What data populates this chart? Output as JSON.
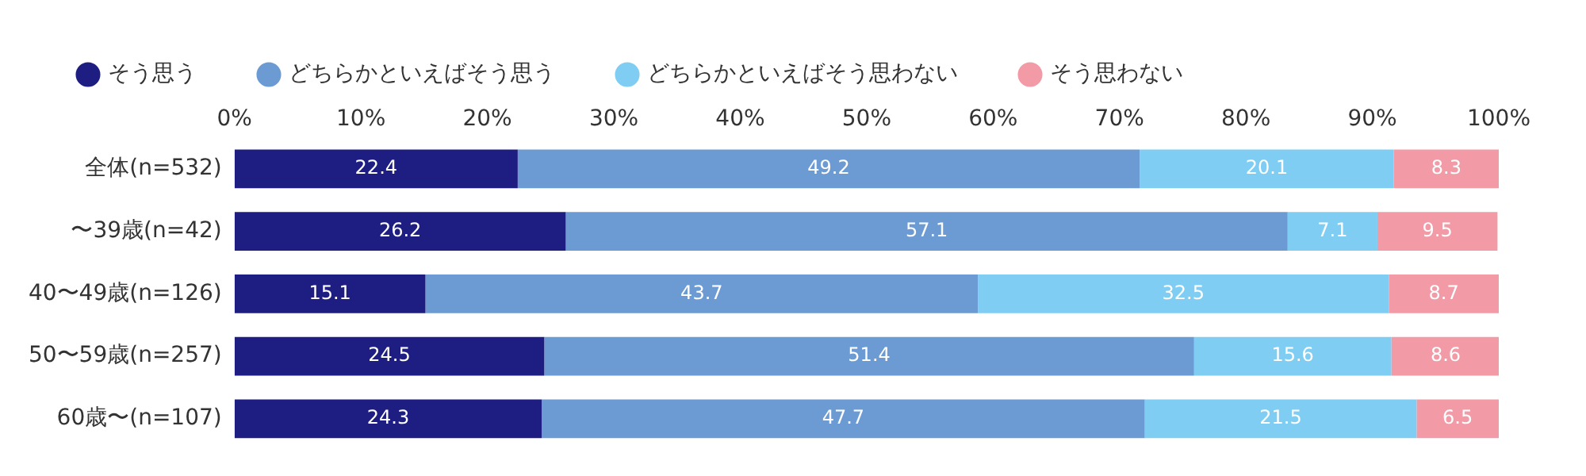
{
  "chart_data": {
    "type": "bar",
    "orientation": "horizontal",
    "stacked": true,
    "data_labels": true,
    "legend": "top left",
    "grid": false,
    "categories": [
      "全体(n=532)",
      "〜39歳(n=42)",
      "40〜49歳(n=126)",
      "50〜59歳(n=257)",
      "60歳〜(n=107)"
    ],
    "xlim": [
      0,
      100
    ],
    "xticks": [
      {
        "value": 0,
        "label": "0%"
      },
      {
        "value": 10,
        "label": "10%"
      },
      {
        "value": 20,
        "label": "20%"
      },
      {
        "value": 30,
        "label": "30%"
      },
      {
        "value": 40,
        "label": "40%"
      },
      {
        "value": 50,
        "label": "50%"
      },
      {
        "value": 60,
        "label": "60%"
      },
      {
        "value": 70,
        "label": "70%"
      },
      {
        "value": 80,
        "label": "80%"
      },
      {
        "value": 90,
        "label": "90%"
      },
      {
        "value": 100,
        "label": "100%"
      }
    ],
    "series": [
      {
        "name": "そう思う",
        "color": "#1e1e82",
        "values": [
          22.4,
          26.2,
          15.1,
          24.5,
          24.3
        ]
      },
      {
        "name": "どちらかといえばそう思う",
        "color": "#6c9bd4",
        "values": [
          49.2,
          57.1,
          43.7,
          51.4,
          47.7
        ]
      },
      {
        "name": "どちらかといえばそう思わない",
        "color": "#7fcdf3",
        "values": [
          20.1,
          7.1,
          32.5,
          15.6,
          21.5
        ]
      },
      {
        "name": "そう思わない",
        "color": "#f29aa6",
        "values": [
          8.3,
          9.5,
          8.7,
          8.6,
          6.5
        ]
      }
    ]
  }
}
